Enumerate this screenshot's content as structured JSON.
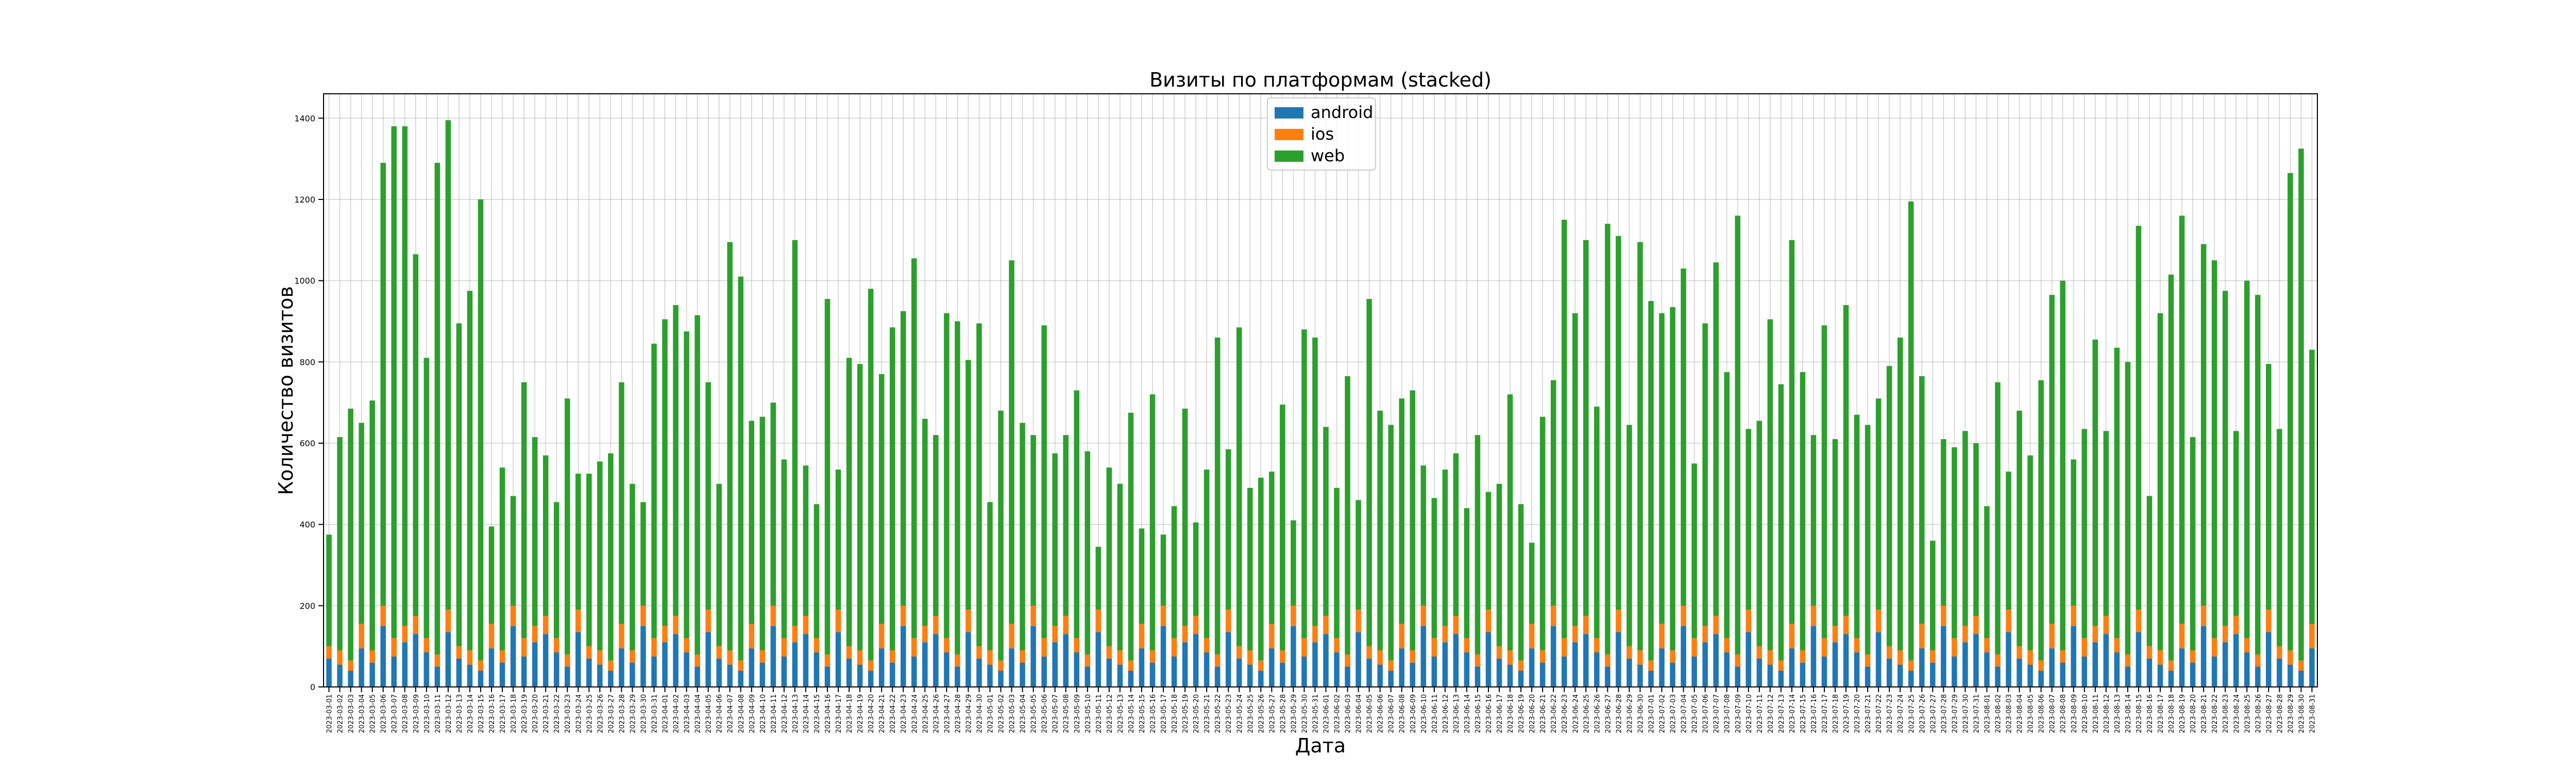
{
  "chart_data": {
    "type": "stacked_bar",
    "title": "Визиты по платформам (stacked)",
    "xlabel": "Дата",
    "ylabel": "Количество визитов",
    "ylim": [
      0,
      1460
    ],
    "yticks": [
      0,
      200,
      400,
      600,
      800,
      1000,
      1200,
      1400
    ],
    "grid": true,
    "legend": "upper center",
    "categories": [
      "2023-03-01",
      "2023-03-02",
      "2023-03-03",
      "2023-03-04",
      "2023-03-05",
      "2023-03-06",
      "2023-03-07",
      "2023-03-08",
      "2023-03-09",
      "2023-03-10",
      "2023-03-11",
      "2023-03-12",
      "2023-03-13",
      "2023-03-14",
      "2023-03-15",
      "2023-03-16",
      "2023-03-17",
      "2023-03-18",
      "2023-03-19",
      "2023-03-20",
      "2023-03-21",
      "2023-03-22",
      "2023-03-23",
      "2023-03-24",
      "2023-03-25",
      "2023-03-26",
      "2023-03-27",
      "2023-03-28",
      "2023-03-29",
      "2023-03-30",
      "2023-03-31",
      "2023-04-01",
      "2023-04-02",
      "2023-04-03",
      "2023-04-04",
      "2023-04-05",
      "2023-04-06",
      "2023-04-07",
      "2023-04-08",
      "2023-04-09",
      "2023-04-10",
      "2023-04-11",
      "2023-04-12",
      "2023-04-13",
      "2023-04-14",
      "2023-04-15",
      "2023-04-16",
      "2023-04-17",
      "2023-04-18",
      "2023-04-19",
      "2023-04-20",
      "2023-04-21",
      "2023-04-22",
      "2023-04-23",
      "2023-04-24",
      "2023-04-25",
      "2023-04-26",
      "2023-04-27",
      "2023-04-28",
      "2023-04-29",
      "2023-04-30",
      "2023-05-01",
      "2023-05-02",
      "2023-05-03",
      "2023-05-04",
      "2023-05-05",
      "2023-05-06",
      "2023-05-07",
      "2023-05-08",
      "2023-05-09",
      "2023-05-10",
      "2023-05-11",
      "2023-05-12",
      "2023-05-13",
      "2023-05-14",
      "2023-05-15",
      "2023-05-16",
      "2023-05-17",
      "2023-05-18",
      "2023-05-19",
      "2023-05-20",
      "2023-05-21",
      "2023-05-22",
      "2023-05-23",
      "2023-05-24",
      "2023-05-25",
      "2023-05-26",
      "2023-05-27",
      "2023-05-28",
      "2023-05-29",
      "2023-05-30",
      "2023-05-31",
      "2023-06-01",
      "2023-06-02",
      "2023-06-03",
      "2023-06-04",
      "2023-06-05",
      "2023-06-06",
      "2023-06-07",
      "2023-06-08",
      "2023-06-09",
      "2023-06-10",
      "2023-06-11",
      "2023-06-12",
      "2023-06-13",
      "2023-06-14",
      "2023-06-15",
      "2023-06-16",
      "2023-06-17",
      "2023-06-18",
      "2023-06-19",
      "2023-06-20",
      "2023-06-21",
      "2023-06-22",
      "2023-06-23",
      "2023-06-24",
      "2023-06-25",
      "2023-06-26",
      "2023-06-27",
      "2023-06-28",
      "2023-06-29",
      "2023-06-30",
      "2023-07-01",
      "2023-07-02",
      "2023-07-03",
      "2023-07-04",
      "2023-07-05",
      "2023-07-06",
      "2023-07-07",
      "2023-07-08",
      "2023-07-09",
      "2023-07-10",
      "2023-07-11",
      "2023-07-12",
      "2023-07-13",
      "2023-07-14",
      "2023-07-15",
      "2023-07-16",
      "2023-07-17",
      "2023-07-18",
      "2023-07-19",
      "2023-07-20",
      "2023-07-21",
      "2023-07-22",
      "2023-07-23",
      "2023-07-24",
      "2023-07-25",
      "2023-07-26",
      "2023-07-27",
      "2023-07-28",
      "2023-07-29",
      "2023-07-30",
      "2023-07-31",
      "2023-08-01",
      "2023-08-02",
      "2023-08-03",
      "2023-08-04",
      "2023-08-05",
      "2023-08-06",
      "2023-08-07",
      "2023-08-08",
      "2023-08-09",
      "2023-08-10",
      "2023-08-11",
      "2023-08-12",
      "2023-08-13",
      "2023-08-14",
      "2023-08-15",
      "2023-08-16",
      "2023-08-17",
      "2023-08-18",
      "2023-08-19",
      "2023-08-20",
      "2023-08-21",
      "2023-08-22",
      "2023-08-23",
      "2023-08-24",
      "2023-08-25",
      "2023-08-26",
      "2023-08-27",
      "2023-08-28",
      "2023-08-29",
      "2023-08-30",
      "2023-08-31"
    ],
    "series": [
      {
        "name": "android",
        "color": "#1f77b4",
        "values": [
          70,
          55,
          40,
          95,
          60,
          150,
          75,
          110,
          130,
          85,
          50,
          135,
          70,
          55,
          40,
          95,
          60,
          150,
          75,
          110,
          130,
          85,
          50,
          135,
          70,
          55,
          40,
          95,
          60,
          150,
          75,
          110,
          130,
          85,
          50,
          135,
          70,
          55,
          40,
          95,
          60,
          150,
          75,
          110,
          130,
          85,
          50,
          135,
          70,
          55,
          40,
          95,
          60,
          150,
          75,
          110,
          130,
          85,
          50,
          135,
          70,
          55,
          40,
          95,
          60,
          150,
          75,
          110,
          130,
          85,
          50,
          135,
          70,
          55,
          40,
          95,
          60,
          150,
          75,
          110,
          130,
          85,
          50,
          135,
          70,
          55,
          40,
          95,
          60,
          150,
          75,
          110,
          130,
          85,
          50,
          135,
          70,
          55,
          40,
          95,
          60,
          150,
          75,
          110,
          130,
          85,
          50,
          135,
          70,
          55,
          40,
          95,
          60,
          150,
          75,
          110,
          130,
          85,
          50,
          135,
          70,
          55,
          40,
          95,
          60,
          150,
          75,
          110,
          130,
          85,
          50,
          135,
          70,
          55,
          40,
          95,
          60,
          150,
          75,
          110,
          130,
          85,
          50,
          135,
          70,
          55,
          40,
          95,
          60,
          150,
          75,
          110,
          130,
          85,
          50,
          135,
          70,
          55,
          40,
          95,
          60,
          150,
          75,
          110,
          130,
          85,
          50,
          135,
          70,
          55,
          40,
          95,
          60,
          150,
          75,
          110,
          130,
          85,
          50,
          135,
          70,
          55,
          40,
          95
        ]
      },
      {
        "name": "ios",
        "color": "#ff7f0e",
        "values": [
          30,
          35,
          25,
          60,
          30,
          50,
          45,
          40,
          45,
          35,
          30,
          55,
          30,
          35,
          25,
          60,
          30,
          50,
          45,
          40,
          45,
          35,
          30,
          55,
          30,
          35,
          25,
          60,
          30,
          50,
          45,
          40,
          45,
          35,
          30,
          55,
          30,
          35,
          25,
          60,
          30,
          50,
          45,
          40,
          45,
          35,
          30,
          55,
          30,
          35,
          25,
          60,
          30,
          50,
          45,
          40,
          45,
          35,
          30,
          55,
          30,
          35,
          25,
          60,
          30,
          50,
          45,
          40,
          45,
          35,
          30,
          55,
          30,
          35,
          25,
          60,
          30,
          50,
          45,
          40,
          45,
          35,
          30,
          55,
          30,
          35,
          25,
          60,
          30,
          50,
          45,
          40,
          45,
          35,
          30,
          55,
          30,
          35,
          25,
          60,
          30,
          50,
          45,
          40,
          45,
          35,
          30,
          55,
          30,
          35,
          25,
          60,
          30,
          50,
          45,
          40,
          45,
          35,
          30,
          55,
          30,
          35,
          25,
          60,
          30,
          50,
          45,
          40,
          45,
          35,
          30,
          55,
          30,
          35,
          25,
          60,
          30,
          50,
          45,
          40,
          45,
          35,
          30,
          55,
          30,
          35,
          25,
          60,
          30,
          50,
          45,
          40,
          45,
          35,
          30,
          55,
          30,
          35,
          25,
          60,
          30,
          50,
          45,
          40,
          45,
          35,
          30,
          55,
          30,
          35,
          25,
          60,
          30,
          50,
          45,
          40,
          45,
          35,
          30,
          55,
          30,
          35,
          25,
          60
        ]
      },
      {
        "name": "web",
        "color": "#2ca02c",
        "values": [
          275,
          525,
          620,
          495,
          615,
          1090,
          1260,
          1230,
          890,
          690,
          1210,
          1205,
          795,
          885,
          1135,
          240,
          450,
          270,
          630,
          465,
          395,
          335,
          630,
          335,
          425,
          465,
          510,
          595,
          410,
          255,
          725,
          755,
          765,
          755,
          835,
          560,
          400,
          1005,
          945,
          500,
          575,
          500,
          440,
          950,
          370,
          330,
          875,
          345,
          710,
          705,
          915,
          615,
          795,
          725,
          935,
          510,
          445,
          800,
          820,
          615,
          795,
          365,
          615,
          895,
          560,
          420,
          770,
          425,
          445,
          610,
          500,
          155,
          440,
          410,
          610,
          235,
          630,
          175,
          325,
          535,
          230,
          415,
          780,
          395,
          785,
          400,
          450,
          375,
          605,
          210,
          760,
          710,
          465,
          370,
          685,
          270,
          855,
          590,
          580,
          555,
          640,
          345,
          345,
          385,
          400,
          320,
          540,
          290,
          400,
          630,
          385,
          200,
          575,
          555,
          1030,
          770,
          925,
          570,
          1060,
          920,
          545,
          1005,
          885,
          765,
          845,
          830,
          430,
          745,
          870,
          655,
          1080,
          445,
          555,
          815,
          680,
          945,
          685,
          420,
          770,
          460,
          765,
          550,
          565,
          520,
          690,
          770,
          1130,
          610,
          270,
          410,
          470,
          480,
          425,
          325,
          670,
          340,
          580,
          480,
          690,
          810,
          910,
          360,
          515,
          705,
          455,
          715,
          720,
          945,
          370,
          830,
          950,
          1005,
          525,
          890,
          930,
          825,
          455,
          880,
          885,
          605,
          535,
          1175,
          1260,
          675
        ]
      }
    ]
  }
}
